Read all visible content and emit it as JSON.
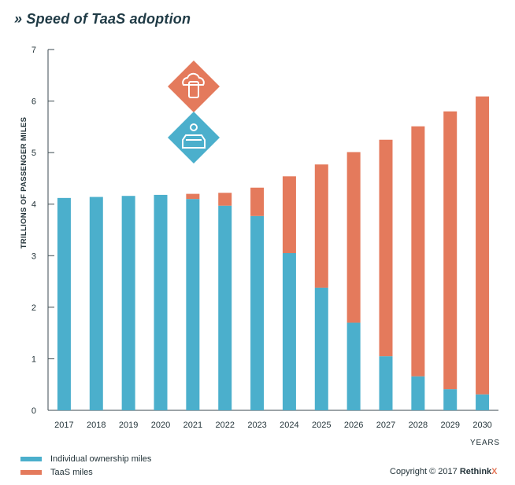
{
  "chart_data": {
    "type": "bar",
    "stacked": true,
    "title": "» Speed of TaaS adoption",
    "ylabel": "TRILLIONS  OF PASSENGER MILES",
    "xlabel": "YEARS",
    "ylim": [
      0,
      7
    ],
    "yticks": [
      "0",
      "1",
      "2",
      "3",
      "4",
      "5",
      "6",
      "7"
    ],
    "categories": [
      "2017",
      "2018",
      "2019",
      "2020",
      "2021",
      "2022",
      "2023",
      "2024",
      "2025",
      "2026",
      "2027",
      "2028",
      "2029",
      "2030"
    ],
    "series": [
      {
        "name": "Individual ownership miles",
        "color": "#4bafcc",
        "values": [
          4.12,
          4.14,
          4.16,
          4.18,
          4.1,
          3.97,
          3.77,
          3.05,
          2.38,
          1.7,
          1.05,
          0.66,
          0.41,
          0.31
        ]
      },
      {
        "name": "TaaS miles",
        "color": "#e47a5c",
        "values": [
          0,
          0,
          0,
          0,
          0.1,
          0.25,
          0.55,
          1.49,
          2.39,
          3.31,
          4.2,
          4.85,
          5.39,
          5.78
        ]
      }
    ],
    "grid": false,
    "legend_position": "bottom-left",
    "icons": [
      {
        "name": "cloud-car-icon",
        "color": "#e47a5c"
      },
      {
        "name": "shared-vehicle-icon",
        "color": "#4bafcc"
      }
    ]
  },
  "copyright": {
    "prefix": "Copyright © 2017 ",
    "brand": "Rethink",
    "brand_x": "X",
    "brand_x_color": "#e47a5c"
  }
}
